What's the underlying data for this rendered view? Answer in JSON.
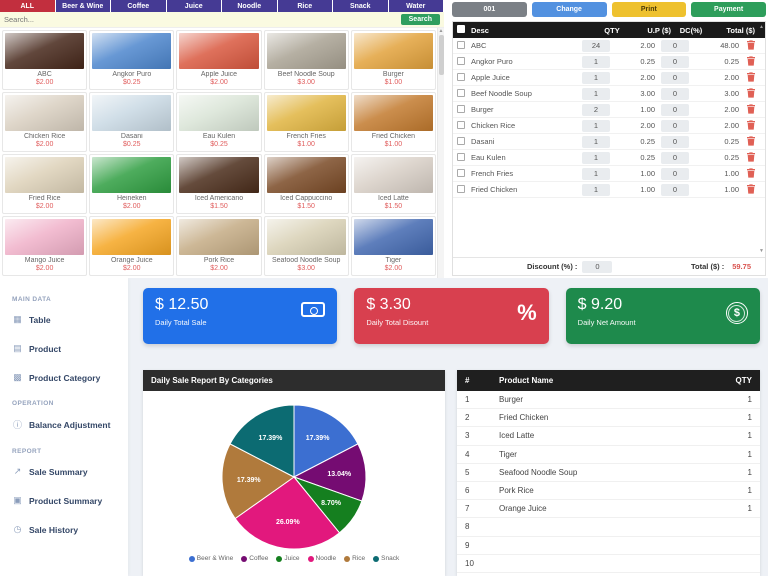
{
  "tabs": {
    "items": [
      {
        "label": "ALL",
        "active": true
      },
      {
        "label": "Beer & Wine",
        "active": false
      },
      {
        "label": "Coffee",
        "active": false
      },
      {
        "label": "Juice",
        "active": false
      },
      {
        "label": "Noodle",
        "active": false
      },
      {
        "label": "Rice",
        "active": false
      },
      {
        "label": "Snack",
        "active": false
      },
      {
        "label": "Water",
        "active": false
      }
    ]
  },
  "search": {
    "placeholder": "Search...",
    "button_label": "Search"
  },
  "products": [
    {
      "name": "ABC",
      "price": "$2.00",
      "image_color": "#46271a"
    },
    {
      "name": "Angkor Puro",
      "price": "$0.25",
      "image_color": "#4d86cd"
    },
    {
      "name": "Apple Juice",
      "price": "$2.00",
      "image_color": "#d9583f"
    },
    {
      "name": "Beef Noodle Soup",
      "price": "$3.00",
      "image_color": "#a9a293"
    },
    {
      "name": "Burger",
      "price": "$1.00",
      "image_color": "#e2a23c"
    },
    {
      "name": "Chicken Rice",
      "price": "$2.00",
      "image_color": "#d9cfc0"
    },
    {
      "name": "Dasani",
      "price": "$0.25",
      "image_color": "#c9d9e4"
    },
    {
      "name": "Eau Kulen",
      "price": "$0.25",
      "image_color": "#d9e4d6"
    },
    {
      "name": "French Fries",
      "price": "$1.00",
      "image_color": "#e0b440"
    },
    {
      "name": "Fried Chicken",
      "price": "$1.00",
      "image_color": "#c27a2e"
    },
    {
      "name": "Fried Rice",
      "price": "$2.00",
      "image_color": "#ddd1b8"
    },
    {
      "name": "Heineken",
      "price": "$2.00",
      "image_color": "#2f9e41"
    },
    {
      "name": "Iced Americano",
      "price": "$1.50",
      "image_color": "#4a2c1a"
    },
    {
      "name": "Iced Cappuccino",
      "price": "$1.50",
      "image_color": "#7a4a26"
    },
    {
      "name": "Iced Latte",
      "price": "$1.50",
      "image_color": "#d8cfc6"
    },
    {
      "name": "Mango Juice",
      "price": "$2.00",
      "image_color": "#f0b1c9"
    },
    {
      "name": "Orange Juice",
      "price": "$2.00",
      "image_color": "#f5a623"
    },
    {
      "name": "Pork Rice",
      "price": "$2.00",
      "image_color": "#c4ab84"
    },
    {
      "name": "Seafood Noodle Soup",
      "price": "$3.00",
      "image_color": "#d8d0b4"
    },
    {
      "name": "Tiger",
      "price": "$2.00",
      "image_color": "#4268b0"
    }
  ],
  "order": {
    "buttons": {
      "table_no": "001",
      "change": "Change",
      "print": "Print",
      "payment": "Payment"
    },
    "columns": {
      "desc": "Desc",
      "qty": "QTY",
      "up": "U.P ($)",
      "dc": "DC(%)",
      "total": "Total ($)"
    },
    "rows": [
      {
        "desc": "ABC",
        "qty": "24",
        "up": "2.00",
        "dc": "0",
        "total": "48.00"
      },
      {
        "desc": "Angkor Puro",
        "qty": "1",
        "up": "0.25",
        "dc": "0",
        "total": "0.25"
      },
      {
        "desc": "Apple Juice",
        "qty": "1",
        "up": "2.00",
        "dc": "0",
        "total": "2.00"
      },
      {
        "desc": "Beef Noodle Soup",
        "qty": "1",
        "up": "3.00",
        "dc": "0",
        "total": "3.00"
      },
      {
        "desc": "Burger",
        "qty": "2",
        "up": "1.00",
        "dc": "0",
        "total": "2.00"
      },
      {
        "desc": "Chicken Rice",
        "qty": "1",
        "up": "2.00",
        "dc": "0",
        "total": "2.00"
      },
      {
        "desc": "Dasani",
        "qty": "1",
        "up": "0.25",
        "dc": "0",
        "total": "0.25"
      },
      {
        "desc": "Eau Kulen",
        "qty": "1",
        "up": "0.25",
        "dc": "0",
        "total": "0.25"
      },
      {
        "desc": "French Fries",
        "qty": "1",
        "up": "1.00",
        "dc": "0",
        "total": "1.00"
      },
      {
        "desc": "Fried Chicken",
        "qty": "1",
        "up": "1.00",
        "dc": "0",
        "total": "1.00"
      }
    ],
    "footer": {
      "discount_label": "Discount (%) :",
      "discount_value": "0",
      "total_label": "Total ($) :",
      "total_value": "59.75"
    }
  },
  "sidebar": {
    "sections": [
      {
        "title": "MAIN DATA",
        "items": [
          {
            "icon": "table-grid-icon",
            "glyph": "▦",
            "label": "Table"
          },
          {
            "icon": "product-list-icon",
            "glyph": "▤",
            "label": "Product"
          },
          {
            "icon": "category-grid-icon",
            "glyph": "▩",
            "label": "Product Category"
          }
        ]
      },
      {
        "title": "OPERATION",
        "items": [
          {
            "icon": "balance-info-icon",
            "glyph": "ⓘ",
            "label": "Balance Adjustment"
          }
        ]
      },
      {
        "title": "REPORT",
        "items": [
          {
            "icon": "chart-icon",
            "glyph": "↗",
            "label": "Sale Summary"
          },
          {
            "icon": "document-icon",
            "glyph": "▣",
            "label": "Product Summary"
          },
          {
            "icon": "clock-icon",
            "glyph": "◷",
            "label": "Sale History"
          }
        ]
      }
    ]
  },
  "cards": [
    {
      "value": "$ 12.50",
      "label": "Daily Total Sale",
      "color": "#2170e8",
      "icon": "banknote-icon"
    },
    {
      "value": "$ 3.30",
      "label": "Daily Total Disount",
      "color": "#d8404f",
      "icon": "percent-icon"
    },
    {
      "value": "$ 9.20",
      "label": "Daily Net Amount",
      "color": "#1e8a4c",
      "icon": "dollar-coin-icon"
    }
  ],
  "chart_data": {
    "type": "pie",
    "title": "Daily Sale Report By Categories",
    "labels": [
      "Beer & Wine",
      "Coffee",
      "Juice",
      "Noodle",
      "Rice",
      "Snack"
    ],
    "values": [
      17.39,
      13.04,
      8.7,
      26.09,
      17.39,
      17.39
    ],
    "value_labels": [
      "17.39%",
      "13.04%",
      "8.70%",
      "26.09%",
      "17.39%",
      "17.39%"
    ],
    "colors": [
      "#3c6fd1",
      "#750c72",
      "#157f1f",
      "#e2187d",
      "#b07a3c",
      "#0c6b72"
    ],
    "start_angle_deg": -90,
    "direction": "clockwise",
    "legend_position": "bottom"
  },
  "product_table": {
    "columns": [
      "#",
      "Product Name",
      "QTY"
    ],
    "rows": [
      [
        "1",
        "Burger",
        "1"
      ],
      [
        "2",
        "Fried Chicken",
        "1"
      ],
      [
        "3",
        "Iced Latte",
        "1"
      ],
      [
        "4",
        "Tiger",
        "1"
      ],
      [
        "5",
        "Seafood Noodle Soup",
        "1"
      ],
      [
        "6",
        "Pork Rice",
        "1"
      ],
      [
        "7",
        "Orange Juice",
        "1"
      ],
      [
        "8",
        "",
        ""
      ],
      [
        "9",
        "",
        ""
      ],
      [
        "10",
        "",
        ""
      ]
    ]
  }
}
